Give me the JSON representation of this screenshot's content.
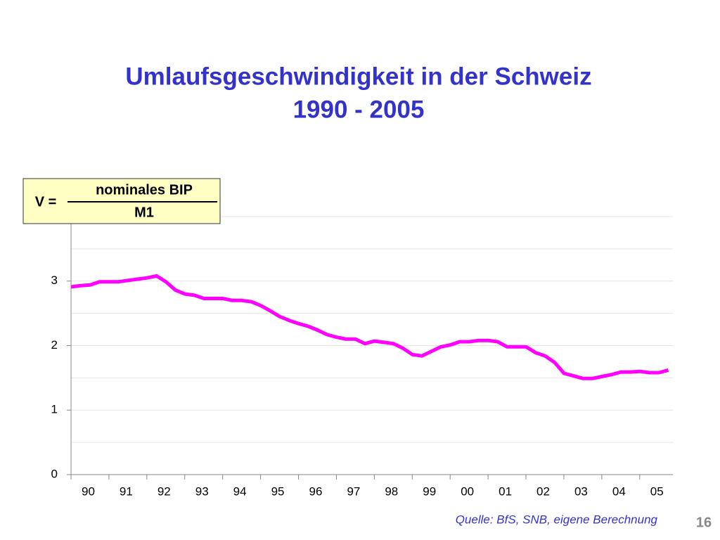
{
  "chart_data": {
    "type": "line",
    "title_line1": "Umlaufsgeschwindigkeit in der Schweiz",
    "title_line2": "1990 - 2005",
    "formula": {
      "lhs": "V =",
      "numerator": "nominales BIP",
      "denominator": "M1"
    },
    "source": "Quelle: BfS, SNB, eigene Berechnung",
    "page_number": "16",
    "categories": [
      "90",
      null,
      null,
      null,
      "91",
      null,
      null,
      null,
      "92",
      null,
      null,
      null,
      "93",
      null,
      null,
      null,
      "94",
      null,
      null,
      null,
      "95",
      null,
      null,
      null,
      "96",
      null,
      null,
      null,
      "97",
      null,
      null,
      null,
      "98",
      null,
      null,
      null,
      "99",
      null,
      null,
      null,
      "00",
      null,
      null,
      null,
      "01",
      null,
      null,
      null,
      "02",
      null,
      null,
      null,
      "03",
      null,
      null,
      null,
      "04",
      null,
      null,
      null,
      "05",
      null,
      null,
      null
    ],
    "values": [
      2.91,
      2.93,
      2.94,
      2.99,
      2.99,
      2.99,
      3.01,
      3.03,
      3.05,
      3.08,
      2.99,
      2.86,
      2.8,
      2.78,
      2.73,
      2.73,
      2.73,
      2.7,
      2.7,
      2.68,
      2.62,
      2.54,
      2.45,
      2.39,
      2.34,
      2.3,
      2.24,
      2.17,
      2.13,
      2.1,
      2.1,
      2.03,
      2.07,
      2.05,
      2.03,
      1.96,
      1.86,
      1.84,
      1.91,
      1.98,
      2.01,
      2.06,
      2.06,
      2.08,
      2.08,
      2.06,
      1.98,
      1.98,
      1.98,
      1.89,
      1.84,
      1.74,
      1.57,
      1.53,
      1.49,
      1.49,
      1.52,
      1.55,
      1.59,
      1.59,
      1.6,
      1.58,
      1.58,
      1.62
    ],
    "color": "#ff00ff",
    "ylim": [
      0,
      4
    ],
    "yticks": [
      0,
      1,
      2,
      3
    ],
    "grid_values": [
      0.5,
      1,
      1.5,
      2,
      2.5,
      3,
      3.5,
      4
    ],
    "grid": true
  }
}
